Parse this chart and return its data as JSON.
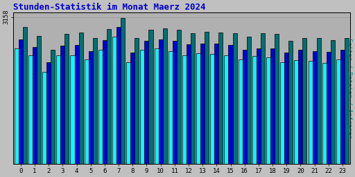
{
  "title": "Stunden-Statistik im Monat Maerz 2024",
  "ylabel_right": "Seiten / Dateien / Anfragen",
  "hours": [
    0,
    1,
    2,
    3,
    4,
    5,
    6,
    7,
    8,
    9,
    10,
    11,
    12,
    13,
    14,
    15,
    16,
    17,
    18,
    19,
    20,
    21,
    22,
    23
  ],
  "seiten": [
    2950,
    2750,
    2450,
    2800,
    2830,
    2700,
    2900,
    3130,
    2700,
    2880,
    2920,
    2880,
    2810,
    2840,
    2820,
    2810,
    2730,
    2810,
    2790,
    2650,
    2710,
    2700,
    2660,
    2710
  ],
  "dateien": [
    2680,
    2520,
    2180,
    2540,
    2550,
    2430,
    2660,
    2950,
    2390,
    2650,
    2680,
    2640,
    2570,
    2590,
    2580,
    2560,
    2450,
    2480,
    2480,
    2390,
    2460,
    2430,
    2410,
    2460
  ],
  "anfragen": [
    2480,
    2340,
    1980,
    2340,
    2340,
    2250,
    2460,
    2740,
    2190,
    2460,
    2480,
    2420,
    2340,
    2380,
    2360,
    2340,
    2240,
    2320,
    2290,
    2180,
    2230,
    2210,
    2175,
    2240
  ],
  "ymax": 3250,
  "ytick_val": 3158,
  "color_seiten": "#007070",
  "color_dateien": "#0000dd",
  "color_anfragen": "#00ffff",
  "bg_color": "#c0c0c0",
  "plot_bg": "#b0b0b0",
  "title_color": "#0000cc",
  "ylabel_color": "#009090",
  "bar_width": 0.3,
  "edge_color": "#000000"
}
